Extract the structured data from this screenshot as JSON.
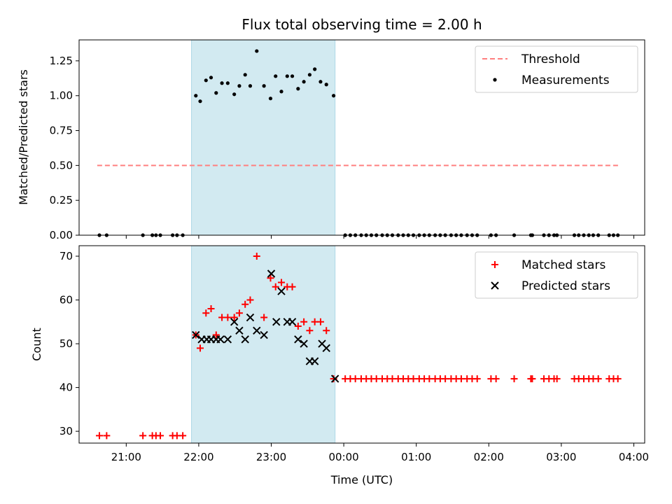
{
  "chart_data": [
    {
      "type": "scatter",
      "title": "Flux total observing time = 2.00 h",
      "xlabel": "",
      "ylabel": "Matched/Predicted stars",
      "ylim": [
        0,
        1.4
      ],
      "yticks": [
        "0.00",
        "0.25",
        "0.50",
        "0.75",
        "1.00",
        "1.25"
      ],
      "ytick_values": [
        0,
        0.25,
        0.5,
        0.75,
        1.0,
        1.25
      ],
      "x_axis": "time (hours since 00:00 UTC)",
      "xlim": [
        -3.65,
        4.15
      ],
      "shaded_window": [
        -2.1,
        -0.12
      ],
      "shade_color": "#add8e6",
      "threshold": {
        "name": "Threshold",
        "value": 0.5,
        "x_range": [
          -3.4,
          3.8
        ],
        "color": "#ff8080"
      },
      "series": [
        {
          "name": "Measurements",
          "color": "#000000",
          "marker": "dot",
          "points": [
            [
              -3.37,
              0
            ],
            [
              -3.27,
              0
            ],
            [
              -2.77,
              0
            ],
            [
              -2.64,
              0
            ],
            [
              -2.59,
              0
            ],
            [
              -2.53,
              0
            ],
            [
              -2.36,
              0
            ],
            [
              -2.3,
              0
            ],
            [
              -2.22,
              0
            ],
            [
              -2.04,
              1.0
            ],
            [
              -1.98,
              0.96
            ],
            [
              -1.9,
              1.11
            ],
            [
              -1.83,
              1.13
            ],
            [
              -1.76,
              1.02
            ],
            [
              -1.68,
              1.09
            ],
            [
              -1.6,
              1.09
            ],
            [
              -1.51,
              1.01
            ],
            [
              -1.44,
              1.07
            ],
            [
              -1.36,
              1.15
            ],
            [
              -1.29,
              1.07
            ],
            [
              -1.2,
              1.32
            ],
            [
              -1.1,
              1.07
            ],
            [
              -1.01,
              0.98
            ],
            [
              -0.94,
              1.14
            ],
            [
              -0.86,
              1.03
            ],
            [
              -0.78,
              1.14
            ],
            [
              -0.71,
              1.14
            ],
            [
              -0.63,
              1.05
            ],
            [
              -0.55,
              1.1
            ],
            [
              -0.47,
              1.15
            ],
            [
              -0.4,
              1.19
            ],
            [
              -0.32,
              1.1
            ],
            [
              -0.24,
              1.08
            ],
            [
              -0.14,
              1.0
            ],
            [
              0.02,
              0
            ],
            [
              0.09,
              0
            ],
            [
              0.16,
              0
            ],
            [
              0.24,
              0
            ],
            [
              0.31,
              0
            ],
            [
              0.38,
              0
            ],
            [
              0.45,
              0
            ],
            [
              0.53,
              0
            ],
            [
              0.6,
              0
            ],
            [
              0.67,
              0
            ],
            [
              0.75,
              0
            ],
            [
              0.82,
              0
            ],
            [
              0.89,
              0
            ],
            [
              0.96,
              0
            ],
            [
              1.04,
              0
            ],
            [
              1.11,
              0
            ],
            [
              1.18,
              0
            ],
            [
              1.26,
              0
            ],
            [
              1.33,
              0
            ],
            [
              1.4,
              0
            ],
            [
              1.48,
              0
            ],
            [
              1.55,
              0
            ],
            [
              1.62,
              0
            ],
            [
              1.7,
              0
            ],
            [
              1.77,
              0
            ],
            [
              1.84,
              0
            ],
            [
              2.03,
              0
            ],
            [
              2.1,
              0
            ],
            [
              2.35,
              0
            ],
            [
              2.58,
              0
            ],
            [
              2.6,
              0
            ],
            [
              2.76,
              0
            ],
            [
              2.83,
              0
            ],
            [
              2.9,
              0
            ],
            [
              2.94,
              0
            ],
            [
              3.18,
              0
            ],
            [
              3.24,
              0
            ],
            [
              3.31,
              0
            ],
            [
              3.38,
              0
            ],
            [
              3.44,
              0
            ],
            [
              3.51,
              0
            ],
            [
              3.66,
              0
            ],
            [
              3.72,
              0
            ],
            [
              3.78,
              0
            ]
          ]
        }
      ],
      "legend": {
        "placement": "top-right",
        "entries": [
          "Threshold",
          "Measurements"
        ]
      }
    },
    {
      "type": "scatter",
      "title": "",
      "xlabel": "Time (UTC)",
      "ylabel": "Count",
      "ylim": [
        27.3,
        72.4
      ],
      "yticks": [
        "30",
        "40",
        "50",
        "60",
        "70"
      ],
      "ytick_values": [
        30,
        40,
        50,
        60,
        70
      ],
      "x_axis": "time (hours since 00:00 UTC)",
      "xlim": [
        -3.65,
        4.15
      ],
      "xticks": [
        "21:00",
        "22:00",
        "23:00",
        "00:00",
        "01:00",
        "02:00",
        "03:00",
        "04:00"
      ],
      "xtick_values": [
        -3,
        -2,
        -1,
        0,
        1,
        2,
        3,
        4
      ],
      "shaded_window": [
        -2.1,
        -0.12
      ],
      "shade_color": "#add8e6",
      "series": [
        {
          "name": "Matched stars",
          "color": "#ff0000",
          "marker": "plus",
          "points": [
            [
              -3.37,
              29
            ],
            [
              -3.27,
              29
            ],
            [
              -2.77,
              29
            ],
            [
              -2.64,
              29
            ],
            [
              -2.59,
              29
            ],
            [
              -2.53,
              29
            ],
            [
              -2.36,
              29
            ],
            [
              -2.3,
              29
            ],
            [
              -2.22,
              29
            ],
            [
              -2.04,
              52
            ],
            [
              -1.98,
              49
            ],
            [
              -1.9,
              57
            ],
            [
              -1.83,
              58
            ],
            [
              -1.76,
              52
            ],
            [
              -1.68,
              56
            ],
            [
              -1.6,
              56
            ],
            [
              -1.51,
              56
            ],
            [
              -1.44,
              57
            ],
            [
              -1.36,
              59
            ],
            [
              -1.29,
              60
            ],
            [
              -1.2,
              70
            ],
            [
              -1.1,
              56
            ],
            [
              -1.01,
              65
            ],
            [
              -0.94,
              63
            ],
            [
              -0.86,
              64
            ],
            [
              -0.78,
              63
            ],
            [
              -0.71,
              63
            ],
            [
              -0.63,
              54
            ],
            [
              -0.55,
              55
            ],
            [
              -0.47,
              53
            ],
            [
              -0.4,
              55
            ],
            [
              -0.32,
              55
            ],
            [
              -0.24,
              53
            ],
            [
              -0.14,
              42
            ],
            [
              0.02,
              42
            ],
            [
              0.09,
              42
            ],
            [
              0.16,
              42
            ],
            [
              0.24,
              42
            ],
            [
              0.31,
              42
            ],
            [
              0.38,
              42
            ],
            [
              0.45,
              42
            ],
            [
              0.53,
              42
            ],
            [
              0.6,
              42
            ],
            [
              0.67,
              42
            ],
            [
              0.75,
              42
            ],
            [
              0.82,
              42
            ],
            [
              0.89,
              42
            ],
            [
              0.96,
              42
            ],
            [
              1.04,
              42
            ],
            [
              1.11,
              42
            ],
            [
              1.18,
              42
            ],
            [
              1.26,
              42
            ],
            [
              1.33,
              42
            ],
            [
              1.4,
              42
            ],
            [
              1.48,
              42
            ],
            [
              1.55,
              42
            ],
            [
              1.62,
              42
            ],
            [
              1.7,
              42
            ],
            [
              1.77,
              42
            ],
            [
              1.84,
              42
            ],
            [
              2.03,
              42
            ],
            [
              2.1,
              42
            ],
            [
              2.35,
              42
            ],
            [
              2.58,
              42
            ],
            [
              2.6,
              42
            ],
            [
              2.76,
              42
            ],
            [
              2.83,
              42
            ],
            [
              2.9,
              42
            ],
            [
              2.94,
              42
            ],
            [
              3.18,
              42
            ],
            [
              3.24,
              42
            ],
            [
              3.31,
              42
            ],
            [
              3.38,
              42
            ],
            [
              3.44,
              42
            ],
            [
              3.51,
              42
            ],
            [
              3.66,
              42
            ],
            [
              3.72,
              42
            ],
            [
              3.78,
              42
            ]
          ]
        },
        {
          "name": "Predicted stars",
          "color": "#000000",
          "marker": "x",
          "points": [
            [
              -2.04,
              52
            ],
            [
              -1.96,
              51
            ],
            [
              -1.89,
              51
            ],
            [
              -1.83,
              51
            ],
            [
              -1.76,
              51
            ],
            [
              -1.7,
              51
            ],
            [
              -1.6,
              51
            ],
            [
              -1.51,
              55
            ],
            [
              -1.44,
              53
            ],
            [
              -1.36,
              51
            ],
            [
              -1.29,
              56
            ],
            [
              -1.2,
              53
            ],
            [
              -1.1,
              52
            ],
            [
              -1.0,
              66
            ],
            [
              -0.93,
              55
            ],
            [
              -0.86,
              62
            ],
            [
              -0.78,
              55
            ],
            [
              -0.71,
              55
            ],
            [
              -0.63,
              51
            ],
            [
              -0.55,
              50
            ],
            [
              -0.47,
              46
            ],
            [
              -0.4,
              46
            ],
            [
              -0.3,
              50
            ],
            [
              -0.24,
              49
            ],
            [
              -0.12,
              42
            ]
          ]
        }
      ],
      "legend": {
        "placement": "top-right",
        "entries": [
          "Matched stars",
          "Predicted stars"
        ]
      }
    }
  ]
}
